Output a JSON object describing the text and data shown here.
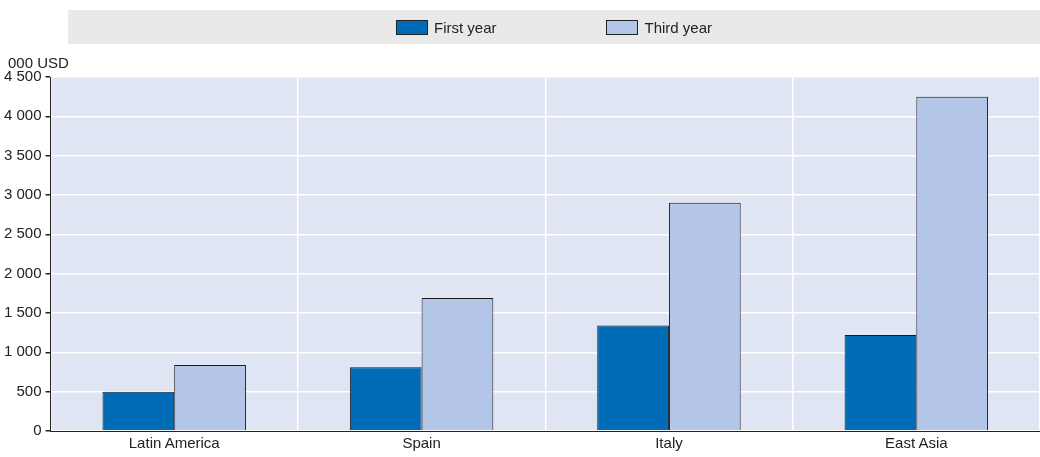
{
  "chart_data": {
    "type": "bar",
    "ylabel": "000 USD",
    "categories": [
      "Latin America",
      "Spain",
      "Italy",
      "East Asia"
    ],
    "series": [
      {
        "name": "First year",
        "color": "#006bb6",
        "values": [
          500,
          810,
          1340,
          1220
        ]
      },
      {
        "name": "Third year",
        "color": "#b4c6e7",
        "values": [
          840,
          1690,
          2900,
          4250
        ]
      }
    ],
    "ylim": [
      0,
      4500
    ],
    "yticks": [
      0,
      500,
      {
        "value": 1000,
        "label": "1 000"
      },
      {
        "value": 1500,
        "label": "1 500"
      },
      {
        "value": 2000,
        "label": "2 000"
      },
      {
        "value": 2500,
        "label": "2 500"
      },
      {
        "value": 3000,
        "label": "3 000"
      },
      {
        "value": 3500,
        "label": "3 500"
      },
      {
        "value": 4000,
        "label": "4 000"
      },
      {
        "value": 4500,
        "label": "4 500"
      }
    ],
    "grid": true,
    "legend": "top"
  }
}
